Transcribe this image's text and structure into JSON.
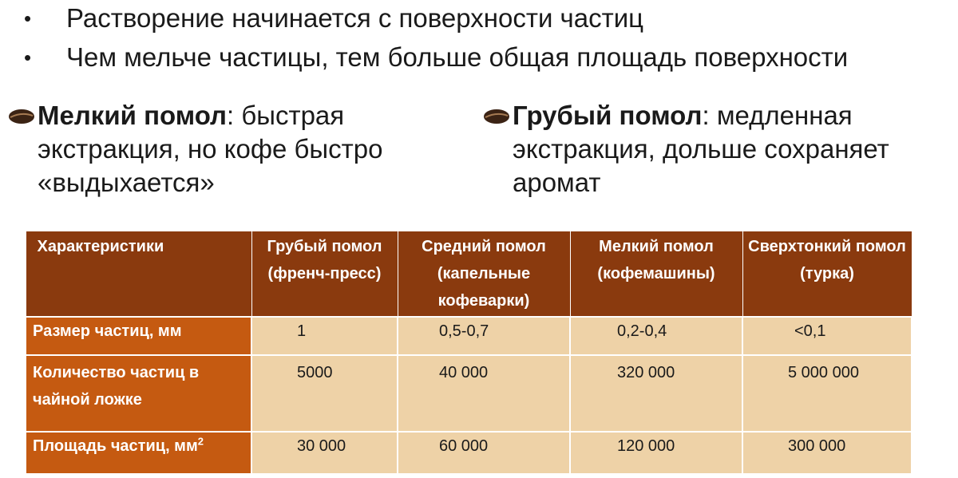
{
  "bullets": [
    {
      "marker": "•",
      "text": "Растворение начинается с поверхности частиц"
    },
    {
      "marker": "•",
      "text": "Чем мельче частицы, тем больше общая площадь поверхности"
    }
  ],
  "grind_notes": {
    "fine": {
      "icon": "coffee-bean-icon",
      "term": "Мелкий помол",
      "text": ": быстрая экстракция, но кофе быстро «выдыхается»"
    },
    "coarse": {
      "icon": "coffee-bean-icon",
      "term": "Грубый помол",
      "text": ": медленная экстракция, дольше сохраняет аромат"
    }
  },
  "table": {
    "headers": [
      "Характеристики",
      "Грубый помол (френч-пресс)",
      "Средний помол (капельные кофеварки)",
      "Мелкий помол (кофемашины)",
      "Сверхтонкий помол (турка)"
    ],
    "rows": [
      {
        "label": "Размер частиц, мм",
        "label_sup": "",
        "values": [
          "1",
          "0,5-0,7",
          "0,2-0,4",
          "<0,1"
        ]
      },
      {
        "label": "Количество частиц в чайной ложке",
        "label_sup": "",
        "values": [
          "5000",
          "40 000",
          "320 000",
          "5 000 000"
        ]
      },
      {
        "label": "Площадь частиц, мм",
        "label_sup": "2",
        "values": [
          "30 000",
          "60 000",
          "120 000",
          "300 000"
        ]
      }
    ]
  },
  "colors": {
    "header_bg": "#8a3a0e",
    "rowhead_bg": "#c55a11",
    "cell_bg": "#eed2a7"
  }
}
